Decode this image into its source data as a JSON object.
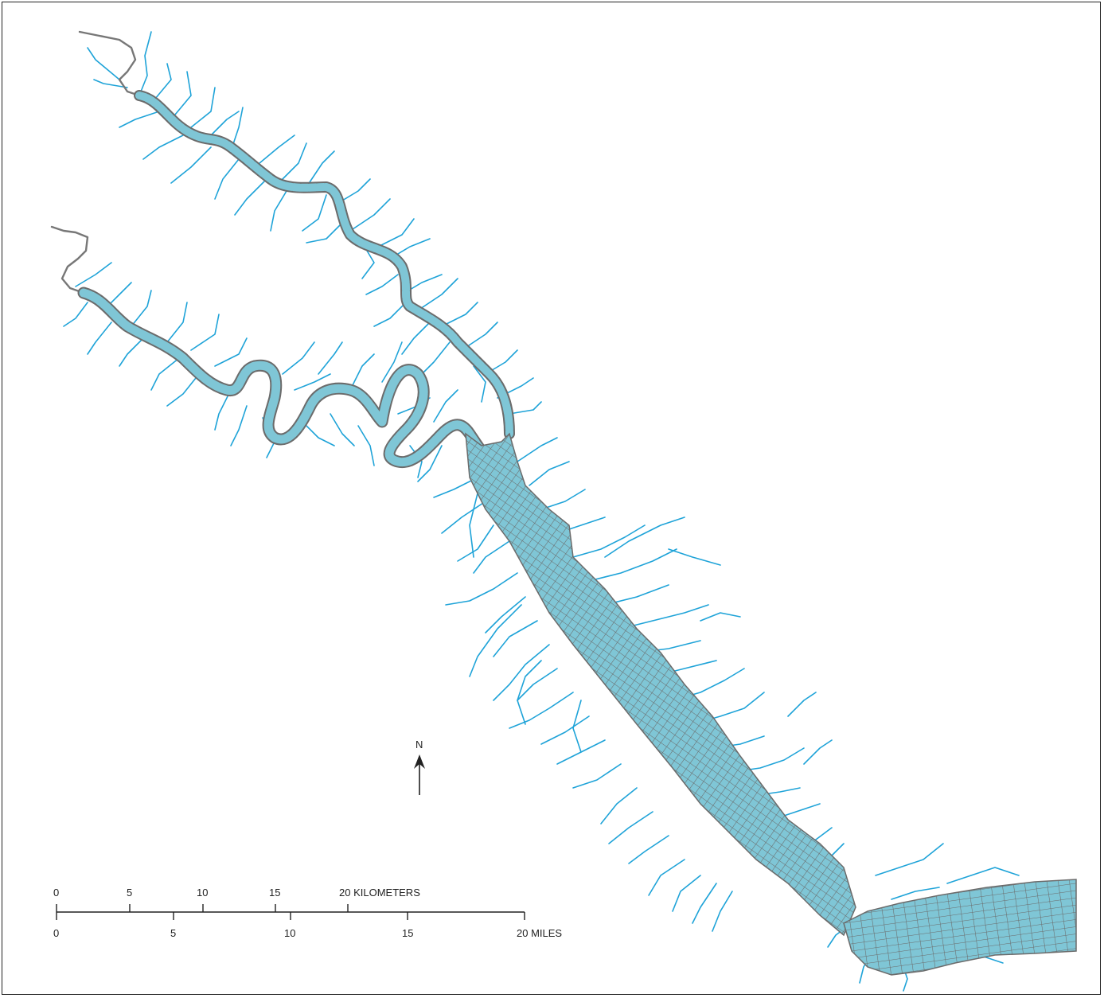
{
  "colors": {
    "tributary": "#1ea3d8",
    "grid_fill": "#7fc6d6",
    "grid_line": "#6b6b6b",
    "headwater": "#777777",
    "ink": "#222222"
  },
  "north_arrow": {
    "label": "N"
  },
  "scale_bar": {
    "km_labels": [
      "0",
      "5",
      "10",
      "15",
      "20 KILOMETERS"
    ],
    "mile_labels": [
      "0",
      "5",
      "10",
      "15",
      "20 MILES"
    ]
  }
}
